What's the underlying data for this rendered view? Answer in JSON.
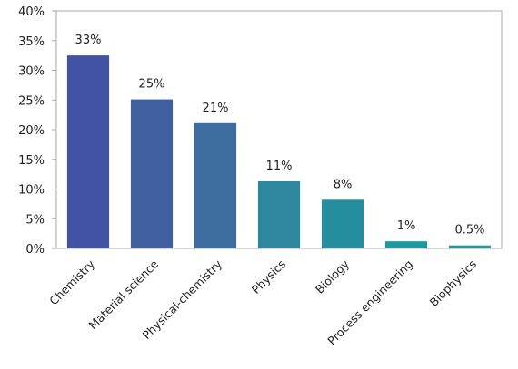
{
  "chart_data": {
    "type": "bar",
    "categories": [
      "Chemistry",
      "Material science",
      "Physical-chemistry",
      "Physics",
      "Biology",
      "Process engineering",
      "Biophysics"
    ],
    "values": [
      32.5,
      25.1,
      21.1,
      11.3,
      8.2,
      1.2,
      0.5
    ],
    "data_labels": [
      "33%",
      "25%",
      "21%",
      "11%",
      "8%",
      "1%",
      "0.5%"
    ],
    "bar_colors": [
      "#4353a3",
      "#405f9f",
      "#3d6c9e",
      "#2e879f",
      "#258e9e",
      "#1e979f",
      "#1c9ea0"
    ],
    "y_ticks": [
      "0%",
      "5%",
      "10%",
      "15%",
      "20%",
      "25%",
      "30%",
      "35%",
      "40%"
    ],
    "ylim": [
      0,
      40
    ],
    "grid": false,
    "legend": "none",
    "frame_color": "#a8a8a8"
  }
}
